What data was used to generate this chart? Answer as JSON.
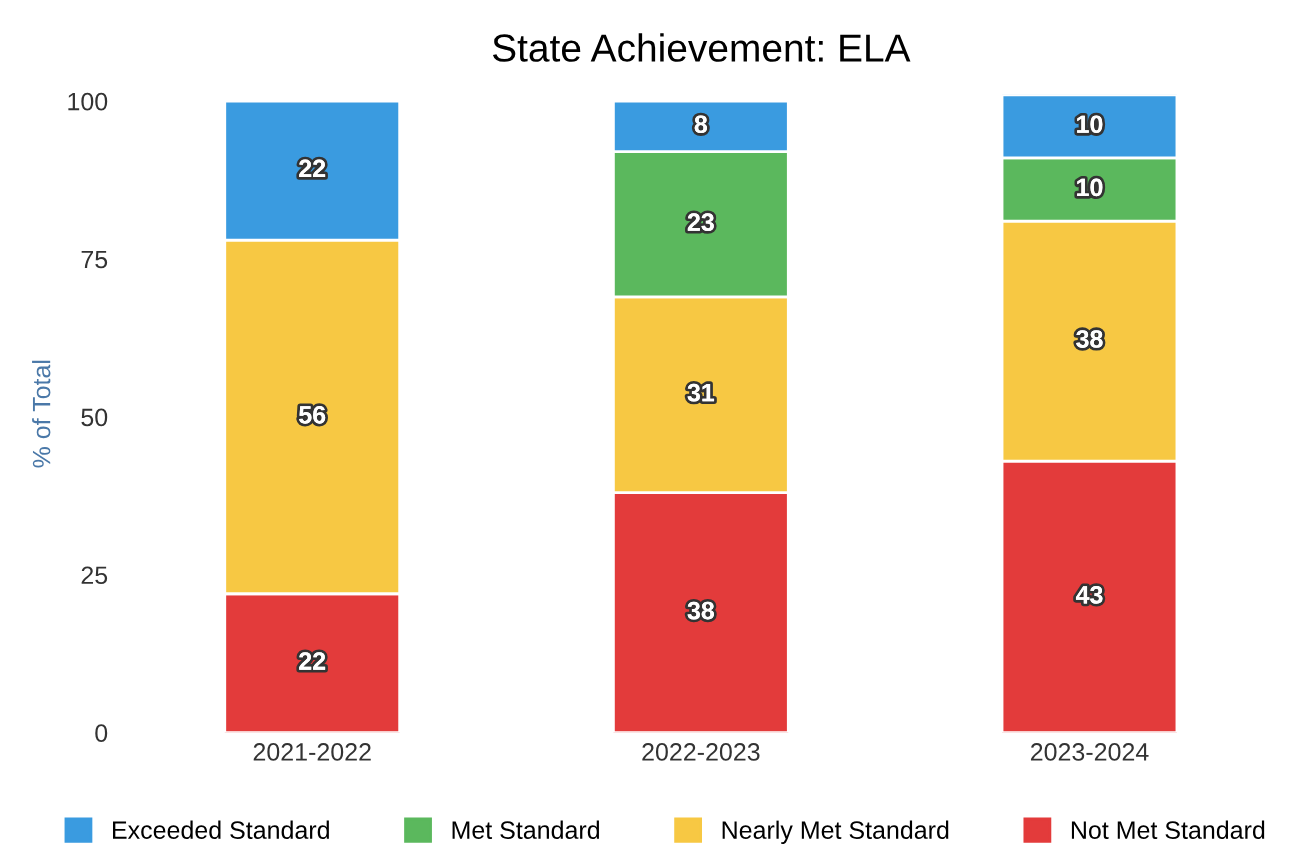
{
  "chart_data": {
    "type": "bar",
    "title": "State Achievement: ELA",
    "ylabel": "% of Total",
    "categories": [
      "2021-2022",
      "2022-2023",
      "2023-2024"
    ],
    "stacked": true,
    "series": [
      {
        "name": "Not Met Standard",
        "color": "#e33b3b",
        "values": [
          22,
          38,
          43
        ]
      },
      {
        "name": "Nearly Met Standard",
        "color": "#f7c843",
        "values": [
          56,
          31,
          38
        ]
      },
      {
        "name": "Met Standard",
        "color": "#5bb85d",
        "values": [
          null,
          23,
          10
        ]
      },
      {
        "name": "Exceeded Standard",
        "color": "#3a9be0",
        "values": [
          22,
          8,
          10
        ]
      }
    ],
    "ylim": [
      0,
      101
    ],
    "yticks": [
      0,
      25,
      50,
      75,
      100
    ],
    "grid": false,
    "legend": "bottom",
    "data_labels": true
  }
}
